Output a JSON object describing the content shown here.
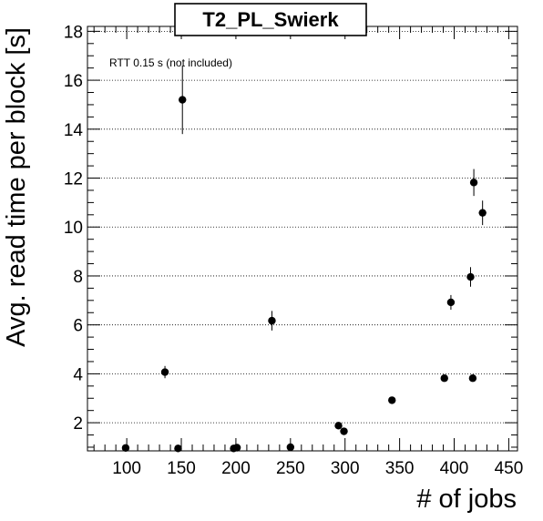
{
  "chart_data": {
    "type": "scatter",
    "title": "T2_PL_Swierk",
    "xlabel": "# of jobs",
    "ylabel": "Avg. read time per block [s]",
    "annotation": "RTT 0.15 s (not included)",
    "xlim": [
      64,
      458
    ],
    "ylim": [
      0.85,
      18.2
    ],
    "grid": "horizontal",
    "x_ticks": [
      100,
      150,
      200,
      250,
      300,
      350,
      400,
      450
    ],
    "y_ticks": [
      2,
      4,
      6,
      8,
      10,
      12,
      14,
      16,
      18
    ],
    "points": [
      {
        "x": 99,
        "y": 0.97,
        "err": 0.05
      },
      {
        "x": 135,
        "y": 4.07,
        "err": 0.25
      },
      {
        "x": 147,
        "y": 0.95,
        "err": 0.05
      },
      {
        "x": 151,
        "y": 15.2,
        "err": 1.4
      },
      {
        "x": 198,
        "y": 0.95,
        "err": 0.05
      },
      {
        "x": 201,
        "y": 0.98,
        "err": 0.05
      },
      {
        "x": 233,
        "y": 6.17,
        "err": 0.4
      },
      {
        "x": 250,
        "y": 1.0,
        "err": 0.05
      },
      {
        "x": 294,
        "y": 1.88,
        "err": 0.1
      },
      {
        "x": 299,
        "y": 1.65,
        "err": 0.1
      },
      {
        "x": 343,
        "y": 2.92,
        "err": 0.1
      },
      {
        "x": 391,
        "y": 3.82,
        "err": 0.1
      },
      {
        "x": 397,
        "y": 6.92,
        "err": 0.3
      },
      {
        "x": 415,
        "y": 7.96,
        "err": 0.4
      },
      {
        "x": 417,
        "y": 3.82,
        "err": 0.1
      },
      {
        "x": 418,
        "y": 11.82,
        "err": 0.55
      },
      {
        "x": 426,
        "y": 10.58,
        "err": 0.5
      }
    ]
  }
}
